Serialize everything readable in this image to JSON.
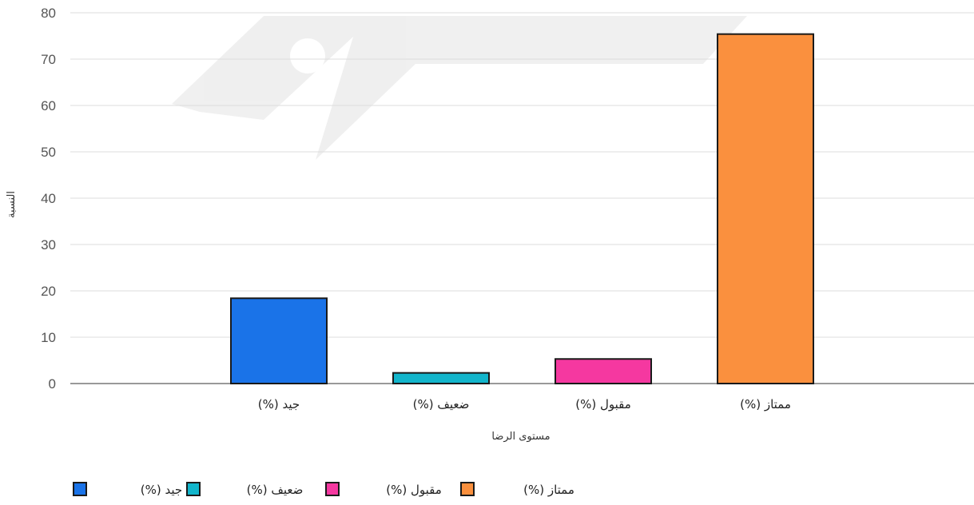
{
  "chart_data": {
    "type": "bar",
    "title": "",
    "xlabel": "مستوى الرضا",
    "ylabel": "النسبة",
    "ylim": [
      0,
      80
    ],
    "yticks": [
      0,
      10,
      20,
      30,
      40,
      50,
      60,
      70,
      80
    ],
    "grid": true,
    "legend_position": "bottom-left",
    "categories": [
      "(%) جيد",
      "(%) ضعيف",
      "(%) مقبول",
      "(%) ممتاز"
    ],
    "values": [
      18.4,
      2.3,
      5.3,
      75.4
    ],
    "colors": [
      "#1a73e8",
      "#12b5cb",
      "#f538a0",
      "#fa903e"
    ]
  }
}
